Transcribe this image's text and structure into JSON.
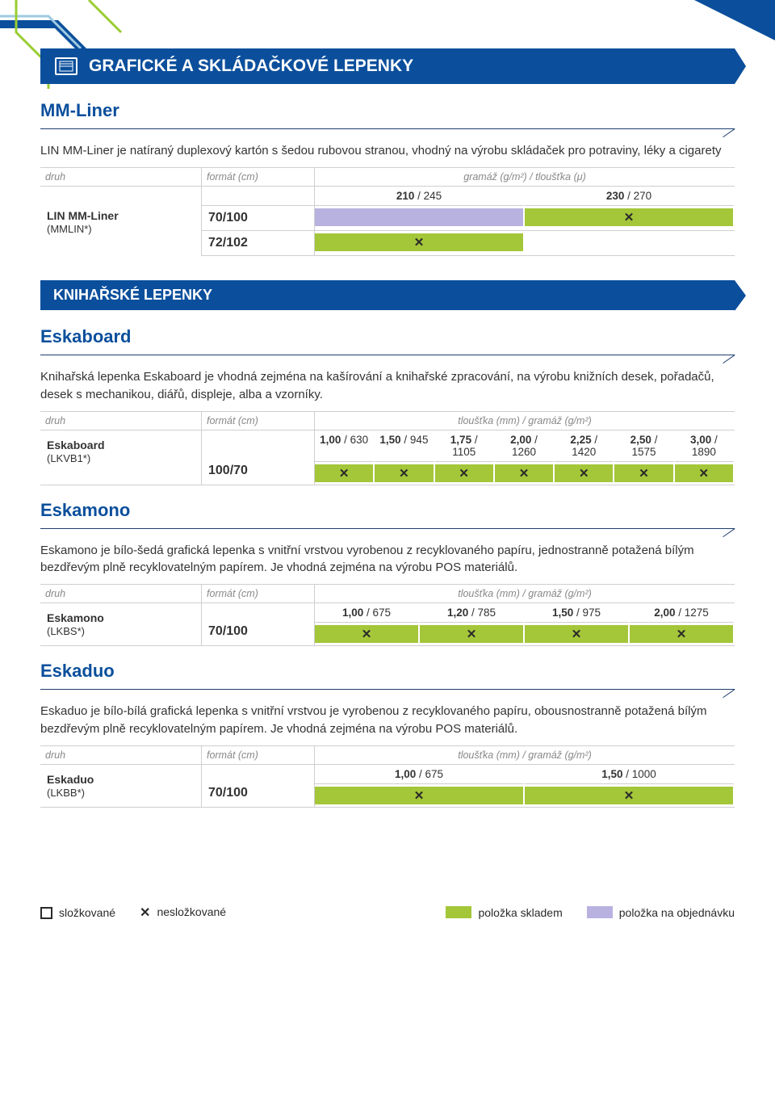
{
  "colors": {
    "brand_blue": "#0b4f9c",
    "green": "#a4c639",
    "lavender": "#b8b2e0",
    "text_gray": "#888888",
    "rule_gray": "#cfcfcf",
    "lime_accent": "#9acd32"
  },
  "page_header": "GRAFICKÉ A SKLÁDAČKOVÉ LEPENKY",
  "section2_header": "KNIHAŘSKÉ LEPENKY",
  "col_labels": {
    "druh": "druh",
    "format": "formát (cm)",
    "gram_thick": "gramáž (g/m²) / tloušťka (μ)",
    "thick_gram": "tloušťka (mm) / gramáž (g/m²)"
  },
  "mmliner": {
    "title": "MM-Liner",
    "desc": "LIN MM-Liner je natíraný duplexový kartón s šedou rubovou stranou, vhodný na výrobu skládaček pro potraviny, léky a cigarety",
    "name_bold": "LIN MM-Liner",
    "name_code": "(MMLIN*)",
    "formats": [
      "70/100",
      "72/102"
    ],
    "headers": [
      "210 / 245",
      "230 / 270"
    ],
    "matrix": [
      [
        {
          "color": "#b8b2e0",
          "x": false
        },
        {
          "color": "#a4c639",
          "x": true
        }
      ],
      [
        {
          "color": "#a4c639",
          "x": true
        },
        {
          "color": "#ffffff",
          "x": false
        }
      ]
    ]
  },
  "eskaboard": {
    "title": "Eskaboard",
    "desc": "Knihařská lepenka Eskaboard je vhodná zejména na kašírování a knihařské zpracování, na výrobu knižních desek, pořadačů, desek s mechanikou, diářů, displeje, alba a vzorníky.",
    "name_bold": "Eskaboard",
    "name_code": "(LKVB1*)",
    "format": "100/70",
    "headers": [
      "1,00 / 630",
      "1,50 / 945",
      "1,75 / 1105",
      "2,00 / 1260",
      "2,25 / 1420",
      "2,50 / 1575",
      "3,00 / 1890"
    ],
    "row": [
      {
        "color": "#a4c639",
        "x": true
      },
      {
        "color": "#a4c639",
        "x": true
      },
      {
        "color": "#a4c639",
        "x": true
      },
      {
        "color": "#a4c639",
        "x": true
      },
      {
        "color": "#a4c639",
        "x": true
      },
      {
        "color": "#a4c639",
        "x": true
      },
      {
        "color": "#a4c639",
        "x": true
      }
    ]
  },
  "eskamono": {
    "title": "Eskamono",
    "desc": "Eskamono je bílo-šedá grafická lepenka s vnitřní vrstvou vyrobenou z recyklovaného papíru, jednostranně potažená bílým bezdřevým plně recyklovatelným papírem. Je vhodná zejména na výrobu POS materiálů.",
    "name_bold": "Eskamono",
    "name_code": "(LKBS*)",
    "format": "70/100",
    "headers": [
      "1,00 / 675",
      "1,20 / 785",
      "1,50 / 975",
      "2,00 / 1275"
    ],
    "row": [
      {
        "color": "#a4c639",
        "x": true
      },
      {
        "color": "#a4c639",
        "x": true
      },
      {
        "color": "#a4c639",
        "x": true
      },
      {
        "color": "#a4c639",
        "x": true
      }
    ]
  },
  "eskaduo": {
    "title": "Eskaduo",
    "desc": "Eskaduo je bílo-bílá grafická lepenka s vnitřní vrstvou je vyrobenou z recyklovaného papíru, obousnostranně potažená bílým bezdřevým plně recyklovatelným papírem. Je vhodná zejména na výrobu POS materiálů.",
    "name_bold": "Eskaduo",
    "name_code": "(LKBB*)",
    "format": "70/100",
    "headers": [
      "1,00 / 675",
      "1,50 / 1000"
    ],
    "row": [
      {
        "color": "#a4c639",
        "x": true
      },
      {
        "color": "#a4c639",
        "x": true
      }
    ]
  },
  "legend": {
    "slozkovane": "složkované",
    "neslozkovane": "nesložkované",
    "skladem": "položka skladem",
    "objednavku": "položka na objednávku"
  }
}
